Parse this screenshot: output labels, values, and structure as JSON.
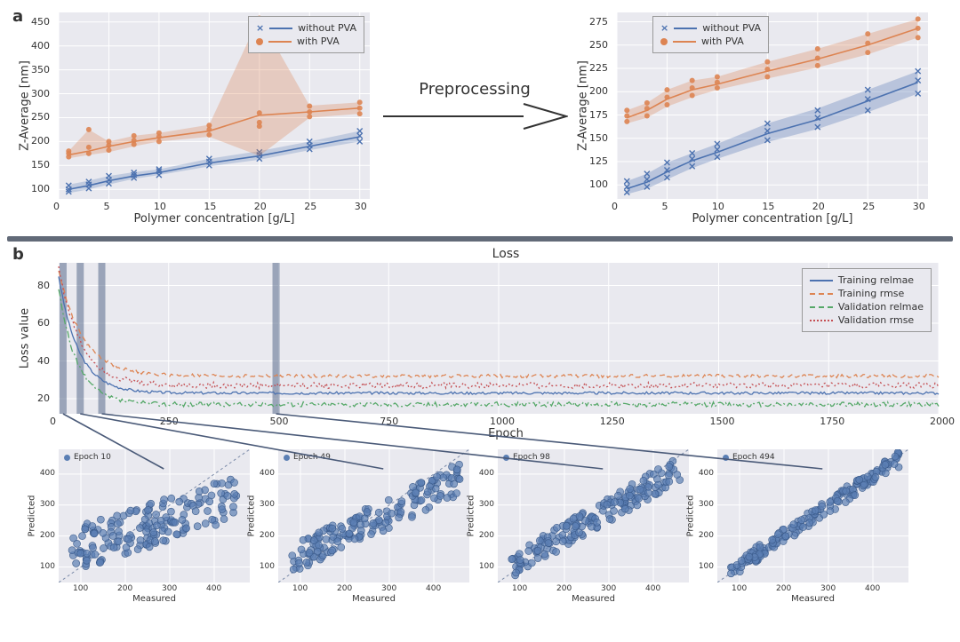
{
  "panel_a": {
    "label": "a",
    "arrow_label": "Preprocessing",
    "left_chart": {
      "type": "line_scatter_band",
      "background_color": "#e9e9ef",
      "grid_color": "#ffffff",
      "xlabel": "Polymer concentration [g/L]",
      "ylabel": "Z-Average [nm]",
      "label_fontsize": 13,
      "tick_fontsize": 11,
      "xlim": [
        0,
        31
      ],
      "ylim": [
        80,
        470
      ],
      "xticks": [
        0,
        5,
        10,
        15,
        20,
        25,
        30
      ],
      "yticks": [
        100,
        150,
        200,
        250,
        300,
        350,
        400,
        450
      ],
      "legend": {
        "pos": "top-right",
        "items": [
          {
            "label": "without PVA",
            "color": "#4c72b0",
            "marker": "x",
            "line": "solid"
          },
          {
            "label": "with PVA",
            "color": "#dd8452",
            "marker": "o",
            "line": "solid"
          }
        ]
      },
      "series": [
        {
          "name": "without_pva",
          "color": "#4c72b0",
          "band_color": "#4c72b0",
          "band_opacity": 0.25,
          "marker": "x",
          "x": [
            1,
            3,
            5,
            7.5,
            10,
            15,
            20,
            25,
            30
          ],
          "y": [
            100,
            108,
            118,
            128,
            135,
            155,
            170,
            190,
            210
          ],
          "lo": [
            92,
            100,
            110,
            122,
            130,
            148,
            162,
            182,
            200
          ],
          "hi": [
            110,
            118,
            128,
            136,
            142,
            164,
            180,
            200,
            222
          ],
          "pts": [
            [
              1,
              95
            ],
            [
              1,
              100
            ],
            [
              1,
              108
            ],
            [
              3,
              102
            ],
            [
              3,
              110
            ],
            [
              3,
              116
            ],
            [
              5,
              112
            ],
            [
              5,
              120
            ],
            [
              5,
              128
            ],
            [
              7.5,
              124
            ],
            [
              7.5,
              130
            ],
            [
              7.5,
              135
            ],
            [
              10,
              130
            ],
            [
              10,
              138
            ],
            [
              10,
              142
            ],
            [
              15,
              150
            ],
            [
              15,
              158
            ],
            [
              15,
              164
            ],
            [
              20,
              164
            ],
            [
              20,
              172
            ],
            [
              20,
              178
            ],
            [
              25,
              184
            ],
            [
              25,
              192
            ],
            [
              25,
              200
            ],
            [
              30,
              200
            ],
            [
              30,
              212
            ],
            [
              30,
              222
            ]
          ]
        },
        {
          "name": "with_pva",
          "color": "#dd8452",
          "band_color": "#dd8452",
          "band_opacity": 0.3,
          "marker": "o",
          "x": [
            1,
            3,
            5,
            7.5,
            10,
            15,
            20,
            25,
            30
          ],
          "y": [
            172,
            180,
            190,
            200,
            208,
            222,
            255,
            262,
            270
          ],
          "lo": [
            165,
            172,
            178,
            190,
            200,
            210,
            170,
            250,
            258
          ],
          "hi": [
            180,
            225,
            200,
            212,
            218,
            235,
            460,
            275,
            282
          ],
          "pts": [
            [
              1,
              168
            ],
            [
              1,
              175
            ],
            [
              1,
              180
            ],
            [
              3,
              175
            ],
            [
              3,
              188
            ],
            [
              3,
              225
            ],
            [
              5,
              182
            ],
            [
              5,
              192
            ],
            [
              5,
              200
            ],
            [
              7.5,
              194
            ],
            [
              7.5,
              202
            ],
            [
              7.5,
              212
            ],
            [
              10,
              200
            ],
            [
              10,
              210
            ],
            [
              10,
              218
            ],
            [
              15,
              214
            ],
            [
              15,
              225
            ],
            [
              15,
              234
            ],
            [
              20,
              232
            ],
            [
              20,
              240
            ],
            [
              20,
              260
            ],
            [
              20,
              458
            ],
            [
              25,
              252
            ],
            [
              25,
              262
            ],
            [
              25,
              274
            ],
            [
              30,
              258
            ],
            [
              30,
              270
            ],
            [
              30,
              282
            ]
          ]
        }
      ]
    },
    "right_chart": {
      "type": "line_scatter_band",
      "background_color": "#e9e9ef",
      "grid_color": "#ffffff",
      "xlabel": "Polymer concentration [g/L]",
      "ylabel": "Z-Average [nm]",
      "xlim": [
        0,
        31
      ],
      "ylim": [
        85,
        285
      ],
      "xticks": [
        0,
        5,
        10,
        15,
        20,
        25,
        30
      ],
      "yticks": [
        100,
        125,
        150,
        175,
        200,
        225,
        250,
        275
      ],
      "legend": {
        "pos": "top-left",
        "items": [
          {
            "label": "without PVA",
            "color": "#4c72b0",
            "marker": "x",
            "line": "solid"
          },
          {
            "label": "with PVA",
            "color": "#dd8452",
            "marker": "o",
            "line": "solid"
          }
        ]
      },
      "series": [
        {
          "name": "without_pva",
          "color": "#4c72b0",
          "band_color": "#4c72b0",
          "band_opacity": 0.3,
          "marker": "x",
          "x": [
            1,
            3,
            5,
            7.5,
            10,
            15,
            20,
            25,
            30
          ],
          "y": [
            96,
            103,
            114,
            126,
            135,
            155,
            170,
            190,
            210
          ],
          "lo": [
            90,
            96,
            106,
            118,
            128,
            146,
            160,
            178,
            198
          ],
          "hi": [
            104,
            112,
            124,
            134,
            144,
            166,
            182,
            202,
            222
          ],
          "pts": [
            [
              1,
              92
            ],
            [
              1,
              98
            ],
            [
              1,
              104
            ],
            [
              3,
              98
            ],
            [
              3,
              106
            ],
            [
              3,
              112
            ],
            [
              5,
              108
            ],
            [
              5,
              116
            ],
            [
              5,
              124
            ],
            [
              7.5,
              120
            ],
            [
              7.5,
              128
            ],
            [
              7.5,
              134
            ],
            [
              10,
              130
            ],
            [
              10,
              138
            ],
            [
              10,
              144
            ],
            [
              15,
              148
            ],
            [
              15,
              158
            ],
            [
              15,
              166
            ],
            [
              20,
              162
            ],
            [
              20,
              172
            ],
            [
              20,
              180
            ],
            [
              25,
              180
            ],
            [
              25,
              192
            ],
            [
              25,
              202
            ],
            [
              30,
              198
            ],
            [
              30,
              212
            ],
            [
              30,
              222
            ]
          ]
        },
        {
          "name": "with_pva",
          "color": "#dd8452",
          "band_color": "#dd8452",
          "band_opacity": 0.3,
          "marker": "o",
          "x": [
            1,
            3,
            5,
            7.5,
            10,
            15,
            20,
            25,
            30
          ],
          "y": [
            172,
            180,
            192,
            202,
            208,
            222,
            235,
            250,
            268
          ],
          "lo": [
            166,
            172,
            184,
            194,
            202,
            214,
            226,
            240,
            258
          ],
          "hi": [
            180,
            188,
            202,
            212,
            216,
            232,
            246,
            262,
            278
          ],
          "pts": [
            [
              1,
              168
            ],
            [
              1,
              174
            ],
            [
              1,
              180
            ],
            [
              3,
              174
            ],
            [
              3,
              182
            ],
            [
              3,
              188
            ],
            [
              5,
              186
            ],
            [
              5,
              194
            ],
            [
              5,
              202
            ],
            [
              7.5,
              196
            ],
            [
              7.5,
              204
            ],
            [
              7.5,
              212
            ],
            [
              10,
              204
            ],
            [
              10,
              210
            ],
            [
              10,
              216
            ],
            [
              15,
              216
            ],
            [
              15,
              224
            ],
            [
              15,
              232
            ],
            [
              20,
              228
            ],
            [
              20,
              236
            ],
            [
              20,
              246
            ],
            [
              25,
              242
            ],
            [
              25,
              252
            ],
            [
              25,
              262
            ],
            [
              30,
              258
            ],
            [
              30,
              268
            ],
            [
              30,
              278
            ]
          ]
        }
      ]
    }
  },
  "panel_b": {
    "label": "b",
    "loss_chart": {
      "type": "line",
      "title": "Loss",
      "title_fontsize": 14,
      "background_color": "#e9e9ef",
      "grid_color": "#ffffff",
      "xlabel": "Epoch",
      "ylabel": "Loss value",
      "xlim": [
        0,
        2000
      ],
      "ylim": [
        12,
        92
      ],
      "xticks": [
        0,
        250,
        500,
        750,
        1000,
        1250,
        1500,
        1750,
        2000
      ],
      "yticks": [
        20,
        40,
        60,
        80
      ],
      "epoch_markers": [
        10,
        49,
        98,
        494
      ],
      "epoch_marker_color": "#5a6b8c",
      "epoch_marker_opacity": 0.55,
      "legend": {
        "pos": "top-right",
        "items": [
          {
            "label": "Training relmae",
            "color": "#4c72b0",
            "style": "solid"
          },
          {
            "label": "Training rmse",
            "color": "#dd8452",
            "style": "dashed"
          },
          {
            "label": "Validation relmae",
            "color": "#55a868",
            "style": "dashdot"
          },
          {
            "label": "Validation rmse",
            "color": "#c44e52",
            "style": "dotted"
          }
        ]
      },
      "series": [
        {
          "name": "training_relmae",
          "color": "#4c72b0",
          "style": "solid",
          "model": {
            "y0": 85,
            "yInf": 23,
            "tau": 45,
            "noise": 0.7
          }
        },
        {
          "name": "training_rmse",
          "color": "#dd8452",
          "style": "dashed",
          "model": {
            "y0": 88,
            "yInf": 32,
            "tau": 55,
            "noise": 0.9
          }
        },
        {
          "name": "validation_relmae",
          "color": "#55a868",
          "style": "dashdot",
          "model": {
            "y0": 78,
            "yInf": 17,
            "tau": 42,
            "noise": 1.3
          }
        },
        {
          "name": "validation_rmse",
          "color": "#c44e52",
          "style": "dotted",
          "model": {
            "y0": 90,
            "yInf": 27,
            "tau": 50,
            "noise": 1.6
          }
        }
      ]
    },
    "scatter_panels": [
      {
        "epoch": 10,
        "label": "Epoch 10",
        "spread": 70,
        "slope": 0.45,
        "intercept": 120
      },
      {
        "epoch": 49,
        "label": "Epoch 49",
        "spread": 50,
        "slope": 0.7,
        "intercept": 65
      },
      {
        "epoch": 98,
        "label": "Epoch 98",
        "spread": 40,
        "slope": 0.82,
        "intercept": 40
      },
      {
        "epoch": 494,
        "label": "Epoch 494",
        "spread": 25,
        "slope": 0.95,
        "intercept": 12
      }
    ],
    "scatter_common": {
      "type": "scatter",
      "background_color": "#e9e9ef",
      "marker_color": "#5b7fb4",
      "marker_edge": "#3a5a8a",
      "marker_opacity": 0.7,
      "marker_size": 4,
      "diag_color": "#7a8aa8",
      "xlabel": "Measured",
      "ylabel": "Predicted",
      "lim": [
        50,
        480
      ],
      "ticks": [
        100,
        200,
        300,
        400
      ],
      "n_points": 170
    }
  },
  "colors": {
    "divider": "#1f2b3e",
    "callout_line": "#4a5a78"
  }
}
